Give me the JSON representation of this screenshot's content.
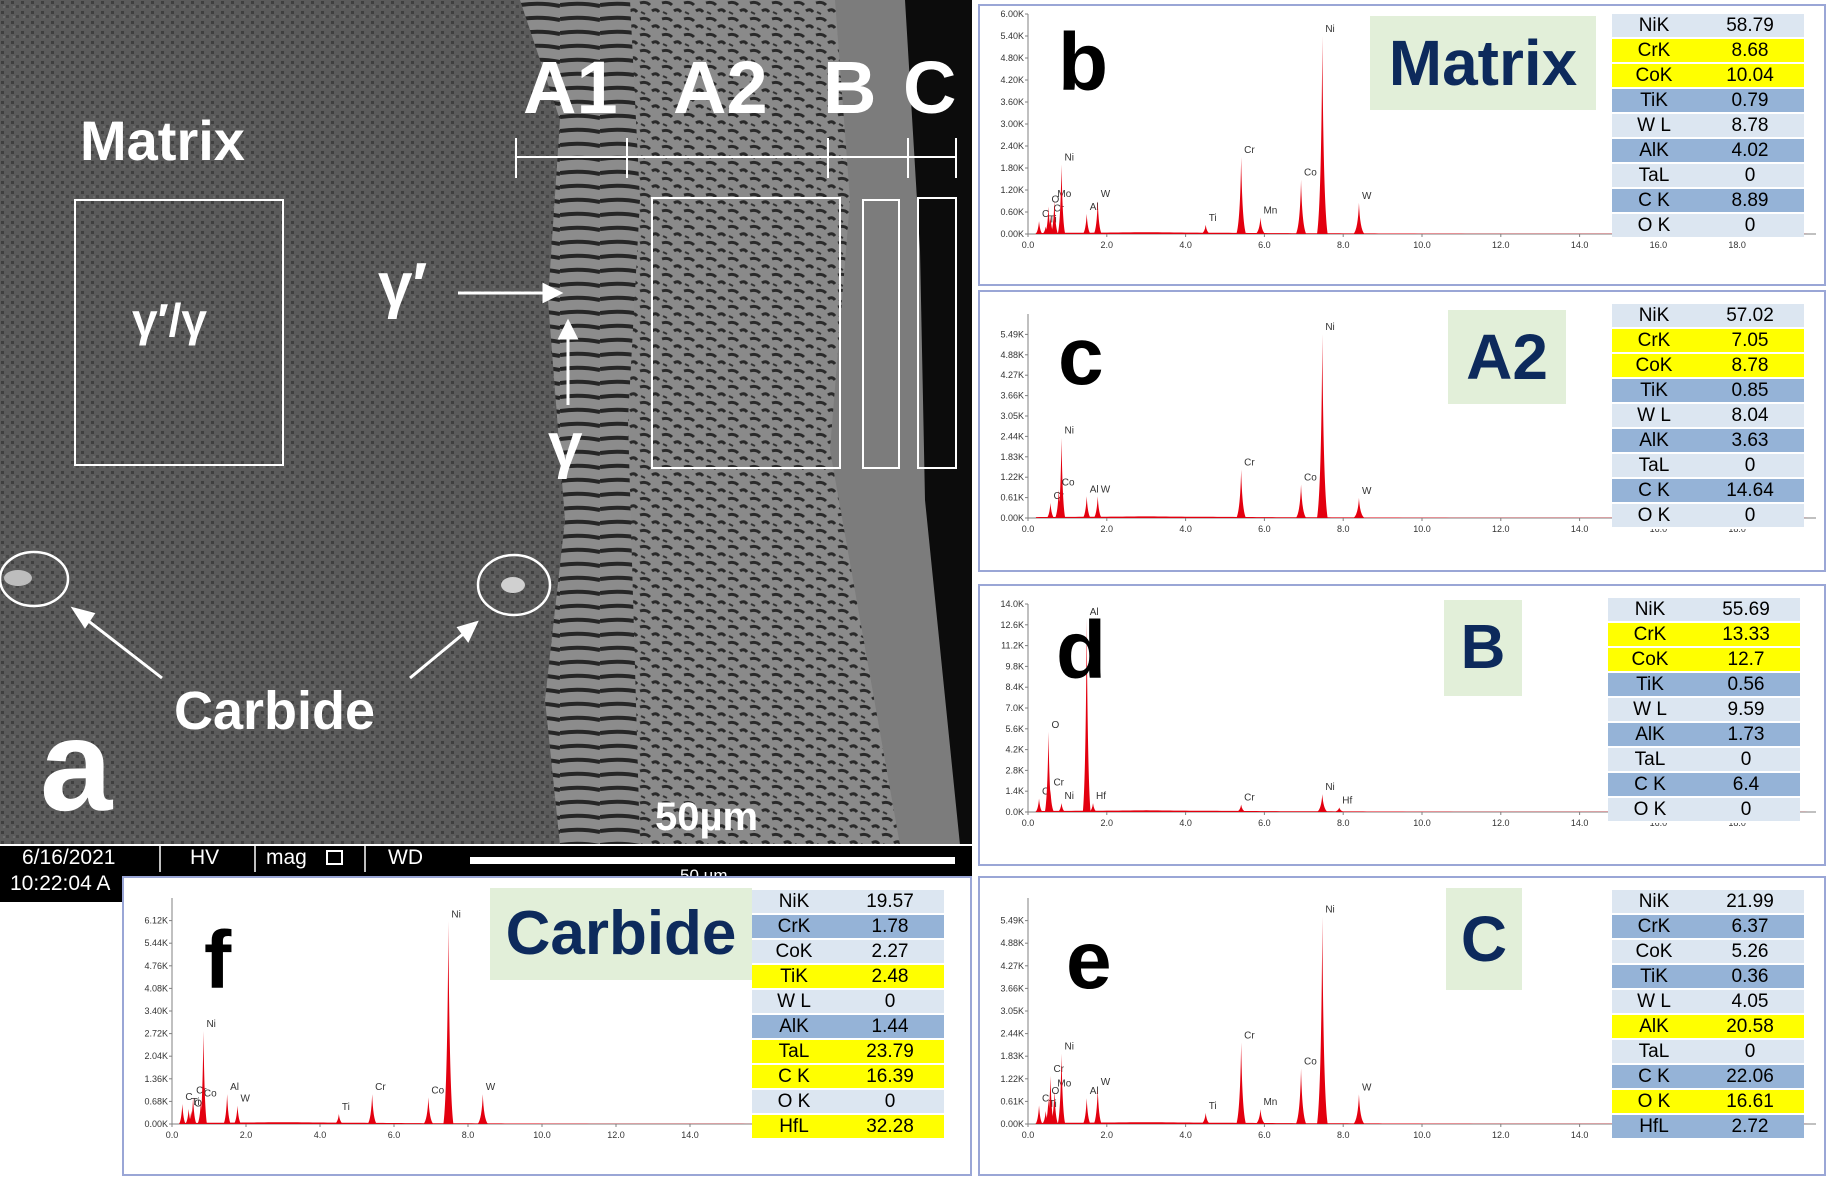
{
  "sem": {
    "panel_letter": "a",
    "matrix_label": "Matrix",
    "phase_box_label": "γ′/γ",
    "gamma_prime_label": "γ′",
    "gamma_label": "γ",
    "carbide_label": "Carbide",
    "zone_labels": [
      "A1",
      "A2",
      "B",
      "C"
    ],
    "scale_label": "50µm",
    "footer": {
      "date": "6/16/2021",
      "time": "10:22:04 A",
      "hv": "HV",
      "mag": "mag",
      "wd": "WD",
      "scale_text": "50 µm"
    }
  },
  "chart_data": [
    {
      "type": "bar",
      "panel": "b",
      "region": "Matrix",
      "xlim": [
        0,
        20
      ],
      "xticks": [
        "0.0",
        "2.0",
        "4.0",
        "6.0",
        "8.0",
        "10.0",
        "12.0",
        "14.0",
        "16.0",
        "18.0"
      ],
      "ylim": [
        0,
        6000
      ],
      "yticks": [
        "0.00K",
        "0.60K",
        "1.20K",
        "1.80K",
        "2.40K",
        "3.00K",
        "3.60K",
        "4.20K",
        "4.80K",
        "5.40K",
        "6.00K"
      ],
      "peaks": [
        {
          "label": "C",
          "x": 0.28,
          "y": 350
        },
        {
          "label": "O",
          "x": 0.52,
          "y": 750
        },
        {
          "label": "Ti",
          "x": 0.45,
          "y": 200
        },
        {
          "label": "Cr",
          "x": 0.57,
          "y": 500
        },
        {
          "label": "Mo",
          "x": 0.67,
          "y": 900
        },
        {
          "label": "Ni",
          "x": 0.85,
          "y": 1900
        },
        {
          "label": "Al",
          "x": 1.49,
          "y": 550
        },
        {
          "label": "W",
          "x": 1.77,
          "y": 900
        },
        {
          "label": "Ti",
          "x": 4.51,
          "y": 250
        },
        {
          "label": "Cr",
          "x": 5.41,
          "y": 2100
        },
        {
          "label": "Mn",
          "x": 5.9,
          "y": 450
        },
        {
          "label": "Co",
          "x": 6.93,
          "y": 1480
        },
        {
          "label": "Ni",
          "x": 7.47,
          "y": 5400
        },
        {
          "label": "W",
          "x": 8.4,
          "y": 850
        }
      ],
      "table": [
        {
          "el": "NiK",
          "val": "58.79",
          "hl": false
        },
        {
          "el": "CrK",
          "val": "8.68",
          "hl": true
        },
        {
          "el": "CoK",
          "val": "10.04",
          "hl": true
        },
        {
          "el": "TiK",
          "val": "0.79",
          "hl": false
        },
        {
          "el": "W L",
          "val": "8.78",
          "hl": false
        },
        {
          "el": "AlK",
          "val": "4.02",
          "hl": false
        },
        {
          "el": "TaL",
          "val": "0",
          "hl": false
        },
        {
          "el": "C K",
          "val": "8.89",
          "hl": false
        },
        {
          "el": "O K",
          "val": "0",
          "hl": false
        }
      ]
    },
    {
      "type": "bar",
      "panel": "c",
      "region": "A2",
      "xlim": [
        0,
        20
      ],
      "xticks": [
        "0.0",
        "2.0",
        "4.0",
        "6.0",
        "8.0",
        "10.0",
        "12.0",
        "14.0",
        "16.0",
        "18.0"
      ],
      "ylim": [
        0,
        6100
      ],
      "yticks": [
        "0.00K",
        "0.61K",
        "1.22K",
        "1.83K",
        "2.44K",
        "3.05K",
        "3.66K",
        "4.27K",
        "4.88K",
        "5.49K"
      ],
      "peaks": [
        {
          "label": "Cr",
          "x": 0.57,
          "y": 450
        },
        {
          "label": "Ni",
          "x": 0.85,
          "y": 2400
        },
        {
          "label": "Co",
          "x": 0.78,
          "y": 850
        },
        {
          "label": "Al",
          "x": 1.49,
          "y": 650
        },
        {
          "label": "W",
          "x": 1.77,
          "y": 650
        },
        {
          "label": "Cr",
          "x": 5.41,
          "y": 1450
        },
        {
          "label": "Co",
          "x": 6.93,
          "y": 1000
        },
        {
          "label": "Ni",
          "x": 7.47,
          "y": 5500
        },
        {
          "label": "W",
          "x": 8.4,
          "y": 600
        }
      ],
      "table": [
        {
          "el": "NiK",
          "val": "57.02",
          "hl": false
        },
        {
          "el": "CrK",
          "val": "7.05",
          "hl": true
        },
        {
          "el": "CoK",
          "val": "8.78",
          "hl": true
        },
        {
          "el": "TiK",
          "val": "0.85",
          "hl": false
        },
        {
          "el": "W L",
          "val": "8.04",
          "hl": false
        },
        {
          "el": "AlK",
          "val": "3.63",
          "hl": false
        },
        {
          "el": "TaL",
          "val": "0",
          "hl": false
        },
        {
          "el": "C K",
          "val": "14.64",
          "hl": false
        },
        {
          "el": "O K",
          "val": "0",
          "hl": false
        }
      ]
    },
    {
      "type": "bar",
      "panel": "d",
      "region": "B",
      "xlim": [
        0,
        20
      ],
      "xticks": [
        "0.0",
        "2.0",
        "4.0",
        "6.0",
        "8.0",
        "10.0",
        "12.0",
        "14.0",
        "16.0",
        "18.0"
      ],
      "ylim": [
        0,
        14000
      ],
      "yticks": [
        "0.0K",
        "1.4K",
        "2.8K",
        "4.2K",
        "5.6K",
        "7.0K",
        "8.4K",
        "9.8K",
        "11.2K",
        "12.6K",
        "14.0K"
      ],
      "peaks": [
        {
          "label": "C",
          "x": 0.28,
          "y": 900
        },
        {
          "label": "O",
          "x": 0.52,
          "y": 5400
        },
        {
          "label": "Cr",
          "x": 0.57,
          "y": 1500
        },
        {
          "label": "Ni",
          "x": 0.85,
          "y": 600
        },
        {
          "label": "Al",
          "x": 1.49,
          "y": 13000
        },
        {
          "label": "Hf",
          "x": 1.65,
          "y": 600
        },
        {
          "label": "Cr",
          "x": 5.41,
          "y": 500
        },
        {
          "label": "Ni",
          "x": 7.47,
          "y": 1200
        },
        {
          "label": "Hf",
          "x": 7.9,
          "y": 300
        }
      ],
      "table": [
        {
          "el": "NiK",
          "val": "55.69",
          "hl": false
        },
        {
          "el": "CrK",
          "val": "13.33",
          "hl": true
        },
        {
          "el": "CoK",
          "val": "12.7",
          "hl": true
        },
        {
          "el": "TiK",
          "val": "0.56",
          "hl": false
        },
        {
          "el": "W L",
          "val": "9.59",
          "hl": false
        },
        {
          "el": "AlK",
          "val": "1.73",
          "hl": false
        },
        {
          "el": "TaL",
          "val": "0",
          "hl": false
        },
        {
          "el": "C K",
          "val": "6.4",
          "hl": false
        },
        {
          "el": "O K",
          "val": "0",
          "hl": false
        }
      ]
    },
    {
      "type": "bar",
      "panel": "e",
      "region": "C",
      "xlim": [
        0,
        20
      ],
      "xticks": [
        "0.0",
        "2.0",
        "4.0",
        "6.0",
        "8.0",
        "10.0",
        "12.0",
        "14.0",
        "16.0",
        "18.0"
      ],
      "ylim": [
        0,
        6100
      ],
      "yticks": [
        "0.00K",
        "0.61K",
        "1.22K",
        "1.83K",
        "2.44K",
        "3.05K",
        "3.66K",
        "4.27K",
        "4.88K",
        "5.49K"
      ],
      "peaks": [
        {
          "label": "C",
          "x": 0.28,
          "y": 500
        },
        {
          "label": "O",
          "x": 0.52,
          "y": 700
        },
        {
          "label": "Ti",
          "x": 0.45,
          "y": 350
        },
        {
          "label": "Cr",
          "x": 0.57,
          "y": 1300
        },
        {
          "label": "Mo",
          "x": 0.67,
          "y": 900
        },
        {
          "label": "Ni",
          "x": 0.85,
          "y": 1900
        },
        {
          "label": "Al",
          "x": 1.49,
          "y": 700
        },
        {
          "label": "W",
          "x": 1.77,
          "y": 950
        },
        {
          "label": "Ti",
          "x": 4.51,
          "y": 300
        },
        {
          "label": "Cr",
          "x": 5.41,
          "y": 2200
        },
        {
          "label": "Mn",
          "x": 5.9,
          "y": 400
        },
        {
          "label": "Co",
          "x": 6.93,
          "y": 1500
        },
        {
          "label": "Ni",
          "x": 7.47,
          "y": 5600
        },
        {
          "label": "W",
          "x": 8.4,
          "y": 800
        }
      ],
      "table": [
        {
          "el": "NiK",
          "val": "21.99",
          "hl": false
        },
        {
          "el": "CrK",
          "val": "6.37",
          "hl": false
        },
        {
          "el": "CoK",
          "val": "5.26",
          "hl": false
        },
        {
          "el": "TiK",
          "val": "0.36",
          "hl": false
        },
        {
          "el": "W L",
          "val": "4.05",
          "hl": false
        },
        {
          "el": "AlK",
          "val": "20.58",
          "hl": true
        },
        {
          "el": "TaL",
          "val": "0",
          "hl": false
        },
        {
          "el": "C K",
          "val": "22.06",
          "hl": false
        },
        {
          "el": "O K",
          "val": "16.61",
          "hl": true
        },
        {
          "el": "HfL",
          "val": "2.72",
          "hl": false
        }
      ]
    },
    {
      "type": "bar",
      "panel": "f",
      "region": "Carbide",
      "xlim": [
        0,
        20
      ],
      "xticks": [
        "0.0",
        "2.0",
        "4.0",
        "6.0",
        "8.0",
        "10.0",
        "12.0",
        "14.0",
        "16.0",
        "18.0"
      ],
      "ylim": [
        0,
        6800
      ],
      "yticks": [
        "0.00K",
        "0.68K",
        "1.36K",
        "2.04K",
        "2.72K",
        "3.40K",
        "4.08K",
        "4.76K",
        "5.44K",
        "6.12K"
      ],
      "peaks": [
        {
          "label": "C",
          "x": 0.28,
          "y": 600
        },
        {
          "label": "O",
          "x": 0.52,
          "y": 400
        },
        {
          "label": "Ti",
          "x": 0.45,
          "y": 450
        },
        {
          "label": "Cr",
          "x": 0.57,
          "y": 800
        },
        {
          "label": "Co",
          "x": 0.78,
          "y": 700
        },
        {
          "label": "Ni",
          "x": 0.85,
          "y": 2800
        },
        {
          "label": "Al",
          "x": 1.49,
          "y": 900
        },
        {
          "label": "W",
          "x": 1.77,
          "y": 550
        },
        {
          "label": "Ti",
          "x": 4.51,
          "y": 300
        },
        {
          "label": "Cr",
          "x": 5.41,
          "y": 900
        },
        {
          "label": "Co",
          "x": 6.93,
          "y": 800
        },
        {
          "label": "Ni",
          "x": 7.47,
          "y": 6100
        },
        {
          "label": "W",
          "x": 8.4,
          "y": 900
        }
      ],
      "table": [
        {
          "el": "NiK",
          "val": "19.57",
          "hl": false
        },
        {
          "el": "CrK",
          "val": "1.78",
          "hl": false
        },
        {
          "el": "CoK",
          "val": "2.27",
          "hl": false
        },
        {
          "el": "TiK",
          "val": "2.48",
          "hl": true
        },
        {
          "el": "W L",
          "val": "0",
          "hl": false
        },
        {
          "el": "AlK",
          "val": "1.44",
          "hl": false
        },
        {
          "el": "TaL",
          "val": "23.79",
          "hl": true
        },
        {
          "el": "C K",
          "val": "16.39",
          "hl": true
        },
        {
          "el": "O K",
          "val": "0",
          "hl": false
        },
        {
          "el": "HfL",
          "val": "32.28",
          "hl": true
        }
      ]
    }
  ],
  "colors": {
    "spectrum": "#e3000f",
    "highlight": "#ffff00",
    "row_blue": "#95b3d7",
    "row_light": "#dce6f1",
    "label_bg": "#e2efd9",
    "label_text": "#0d2a5c"
  }
}
